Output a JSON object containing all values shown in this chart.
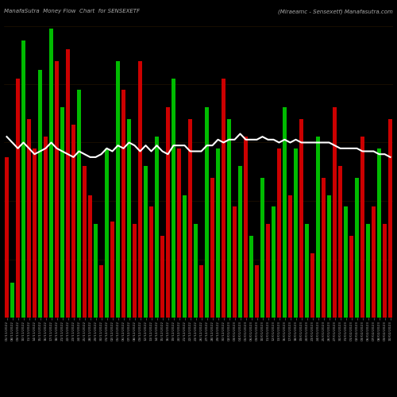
{
  "title_left": "ManafaSutra  Money Flow  Chart  for SENSEXETF",
  "title_right": "(Miraeamc - Sensexetf) Manafasutra.com",
  "background_color": "#000000",
  "bar_color_up": "#00bb00",
  "bar_color_down": "#cc0000",
  "line_color": "#ffffff",
  "title_color": "#aaaaaa",
  "figsize": [
    5.0,
    5.0
  ],
  "dpi": 100,
  "bar_heights": [
    55,
    12,
    82,
    95,
    68,
    58,
    85,
    62,
    99,
    88,
    72,
    92,
    66,
    78,
    52,
    42,
    32,
    18,
    58,
    33,
    88,
    78,
    68,
    32,
    88,
    52,
    38,
    62,
    28,
    72,
    82,
    58,
    42,
    68,
    32,
    18,
    72,
    48,
    58,
    82,
    68,
    38,
    52,
    62,
    28,
    18,
    48,
    32,
    38,
    58,
    72,
    42,
    58,
    68,
    32,
    22,
    62,
    48,
    42,
    72,
    52,
    38,
    28,
    48,
    62,
    32,
    38,
    58,
    32,
    68
  ],
  "bar_colors": [
    "r",
    "g",
    "r",
    "g",
    "r",
    "r",
    "g",
    "r",
    "g",
    "r",
    "g",
    "r",
    "r",
    "g",
    "r",
    "r",
    "g",
    "r",
    "g",
    "r",
    "g",
    "r",
    "g",
    "r",
    "r",
    "g",
    "r",
    "g",
    "r",
    "r",
    "g",
    "r",
    "g",
    "r",
    "g",
    "r",
    "g",
    "r",
    "g",
    "r",
    "g",
    "r",
    "g",
    "r",
    "g",
    "r",
    "g",
    "r",
    "g",
    "r",
    "g",
    "r",
    "g",
    "r",
    "g",
    "r",
    "g",
    "r",
    "g",
    "r",
    "r",
    "g",
    "r",
    "g",
    "r",
    "g",
    "r",
    "g",
    "r",
    "r"
  ],
  "ma_values": [
    62,
    60,
    58,
    60,
    58,
    56,
    57,
    58,
    60,
    58,
    57,
    56,
    55,
    57,
    56,
    55,
    55,
    56,
    58,
    57,
    59,
    58,
    60,
    59,
    57,
    59,
    57,
    59,
    57,
    56,
    59,
    59,
    59,
    57,
    57,
    57,
    59,
    59,
    61,
    60,
    61,
    61,
    63,
    61,
    61,
    61,
    62,
    61,
    61,
    60,
    61,
    60,
    61,
    60,
    60,
    60,
    60,
    60,
    60,
    59,
    58,
    58,
    58,
    58,
    57,
    57,
    57,
    56,
    56,
    55
  ],
  "labels": [
    "05/11/2022",
    "08/11/2022",
    "09/11/2022",
    "10/11/2022",
    "11/11/2022",
    "14/11/2022",
    "15/11/2022",
    "16/11/2022",
    "17/11/2022",
    "18/11/2022",
    "21/11/2022",
    "22/11/2022",
    "23/11/2022",
    "24/11/2022",
    "25/11/2022",
    "28/11/2022",
    "29/11/2022",
    "30/11/2022",
    "01/12/2022",
    "02/12/2022",
    "05/12/2022",
    "06/12/2022",
    "07/12/2022",
    "08/12/2022",
    "09/12/2022",
    "12/12/2022",
    "13/12/2022",
    "14/12/2022",
    "15/12/2022",
    "16/12/2022",
    "19/12/2022",
    "20/12/2022",
    "21/12/2022",
    "22/12/2022",
    "23/12/2022",
    "26/12/2022",
    "27/12/2022",
    "28/12/2022",
    "29/12/2022",
    "30/12/2022",
    "02/01/2023",
    "03/01/2023",
    "04/01/2023",
    "05/01/2023",
    "06/01/2023",
    "09/01/2023",
    "10/01/2023",
    "11/01/2023",
    "12/01/2023",
    "13/01/2023",
    "16/01/2023",
    "17/01/2023",
    "18/01/2023",
    "19/01/2023",
    "20/01/2023",
    "23/01/2023",
    "24/01/2023",
    "25/01/2023",
    "26/01/2023",
    "27/01/2023",
    "30/01/2023",
    "31/01/2023",
    "01/02/2023",
    "02/02/2023",
    "03/02/2023",
    "06/02/2023",
    "07/02/2023",
    "08/02/2023",
    "09/02/2023",
    "10/02/2023"
  ],
  "ylim": [
    0,
    100
  ],
  "ma_ylim_min": 0,
  "ma_ylim_max": 100
}
